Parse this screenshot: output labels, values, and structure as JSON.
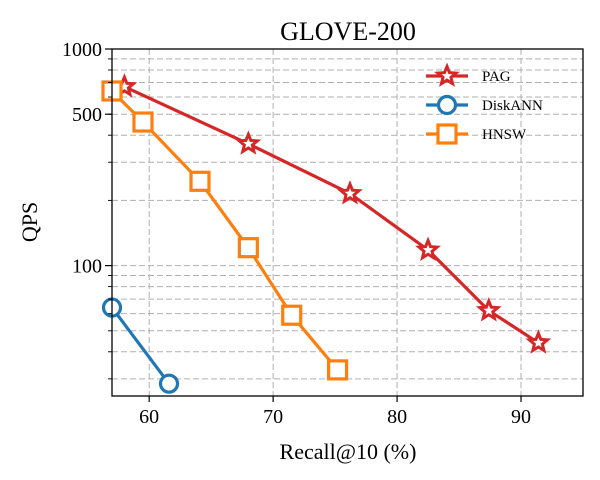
{
  "chart_data": {
    "type": "line",
    "title": "GLOVE-200",
    "xlabel": "Recall@10 (%)",
    "ylabel": "QPS",
    "xlim": [
      57,
      95
    ],
    "ylim": [
      25,
      1000
    ],
    "yscale": "log",
    "xticks": [
      60,
      70,
      80,
      90
    ],
    "yticks": [
      100,
      500,
      1000
    ],
    "grid": true,
    "legend": "top-right",
    "series": [
      {
        "name": "PAG",
        "color": "#d62728",
        "marker": "star",
        "x": [
          58.0,
          68.0,
          76.2,
          82.5,
          87.4,
          91.4
        ],
        "y": [
          670,
          365,
          215,
          118,
          62,
          44
        ]
      },
      {
        "name": "DiskANN",
        "color": "#1f77b4",
        "marker": "circle",
        "x": [
          57.0,
          61.6
        ],
        "y": [
          64,
          28.5
        ]
      },
      {
        "name": "HNSW",
        "color": "#ff7f0e",
        "marker": "square",
        "x": [
          57.0,
          59.5,
          64.1,
          68.0,
          71.5,
          75.2
        ],
        "y": [
          640,
          460,
          245,
          121,
          59,
          33
        ]
      }
    ]
  }
}
